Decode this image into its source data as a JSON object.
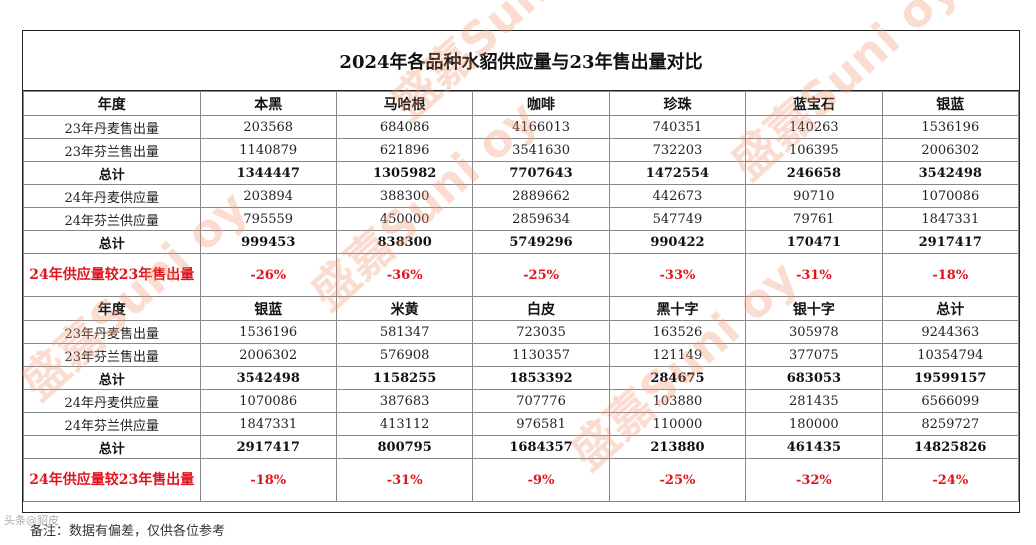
{
  "title": "2024年各品种水貂供应量与23年售出量对比",
  "sections": [
    {
      "header": [
        "年度",
        "本黑",
        "马哈根",
        "咖啡",
        "珍珠",
        "蓝宝石",
        "银蓝"
      ],
      "rows": [
        {
          "kind": "data",
          "cells": [
            "23年丹麦售出量",
            "203568",
            "684086",
            "4166013",
            "740351",
            "140263",
            "1536196"
          ]
        },
        {
          "kind": "data",
          "cells": [
            "23年芬兰售出量",
            "1140879",
            "621896",
            "3541630",
            "732203",
            "106395",
            "2006302"
          ]
        },
        {
          "kind": "total",
          "cells": [
            "总计",
            "1344447",
            "1305982",
            "7707643",
            "1472554",
            "246658",
            "3542498"
          ]
        },
        {
          "kind": "data",
          "cells": [
            "24年丹麦供应量",
            "203894",
            "388300",
            "2889662",
            "442673",
            "90710",
            "1070086"
          ]
        },
        {
          "kind": "data",
          "cells": [
            "24年芬兰供应量",
            "795559",
            "450000",
            "2859634",
            "547749",
            "79761",
            "1847331"
          ]
        },
        {
          "kind": "total",
          "cells": [
            "总计",
            "999453",
            "838300",
            "5749296",
            "990422",
            "170471",
            "2917417"
          ]
        },
        {
          "kind": "pct",
          "cells": [
            "24年供应量较23年售出量",
            "-26%",
            "-36%",
            "-25%",
            "-33%",
            "-31%",
            "-18%"
          ]
        }
      ]
    },
    {
      "header": [
        "年度",
        "银蓝",
        "米黄",
        "白皮",
        "黑十字",
        "银十字",
        "总计"
      ],
      "rows": [
        {
          "kind": "data",
          "cells": [
            "23年丹麦售出量",
            "1536196",
            "581347",
            "723035",
            "163526",
            "305978",
            "9244363"
          ]
        },
        {
          "kind": "data",
          "cells": [
            "23年芬兰售出量",
            "2006302",
            "576908",
            "1130357",
            "121149",
            "377075",
            "10354794"
          ]
        },
        {
          "kind": "total",
          "cells": [
            "总计",
            "3542498",
            "1158255",
            "1853392",
            "284675",
            "683053",
            "19599157"
          ]
        },
        {
          "kind": "data",
          "cells": [
            "24年丹麦供应量",
            "1070086",
            "387683",
            "707776",
            "103880",
            "281435",
            "6566099"
          ]
        },
        {
          "kind": "data",
          "cells": [
            "24年芬兰供应量",
            "1847331",
            "413112",
            "976581",
            "110000",
            "180000",
            "8259727"
          ]
        },
        {
          "kind": "total",
          "cells": [
            "总计",
            "2917417",
            "800795",
            "1684357",
            "213880",
            "461435",
            "14825826"
          ]
        },
        {
          "kind": "pct",
          "cells": [
            "24年供应量较23年售出量",
            "-18%",
            "-31%",
            "-9%",
            "-25%",
            "-32%",
            "-24%"
          ]
        }
      ]
    }
  ],
  "footnote": "备注：数据有偏差，仅供各位参考",
  "watermark": "盛嘉Suni oy",
  "corner_mark": "头条@貂皮"
}
